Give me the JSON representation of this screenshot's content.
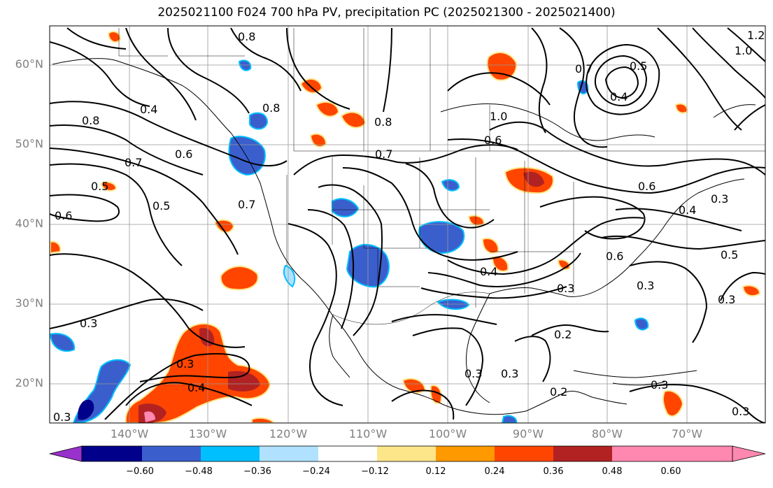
{
  "title": "2025021100 F024 700 hPa PV, precipitation PC (2025021300 - 2025021400)",
  "latitude_labels": [
    "60°N",
    "50°N",
    "40°N",
    "30°N",
    "20°N"
  ],
  "longitude_labels": [
    "140°W",
    "130°W",
    "120°W",
    "110°W",
    "100°W",
    "90°W",
    "80°W",
    "70°W"
  ],
  "colorbar": {
    "tick_labels": [
      "−0.60",
      "−0.48",
      "−0.36",
      "−0.24",
      "−0.12",
      "0.12",
      "0.24",
      "0.36",
      "0.48",
      "0.60"
    ],
    "colors": [
      "#9932cc",
      "#00008b",
      "#3a5fcd",
      "#00bfff",
      "#b0e2ff",
      "#ffffff",
      "#fde68a",
      "#ff9900",
      "#ff4500",
      "#b22222",
      "#ff88b0"
    ]
  },
  "contour_labels": [
    "0.8",
    "0.8",
    "0.8",
    "0.7",
    "1.2",
    "1.0",
    "0.5",
    "0.4",
    "0.8",
    "0.4",
    "0.7",
    "0.6",
    "1.0",
    "0.6",
    "0.5",
    "0.6",
    "0.7",
    "0.6",
    "0.5",
    "0.7",
    "0.4",
    "0.3",
    "0.6",
    "0.3",
    "0.5",
    "0.4",
    "0.3",
    "0.3",
    "0.3",
    "0.3",
    "0.4",
    "0.3",
    "0.2",
    "0.3",
    "0.2",
    "0.3",
    "0.3",
    "0.3"
  ]
}
